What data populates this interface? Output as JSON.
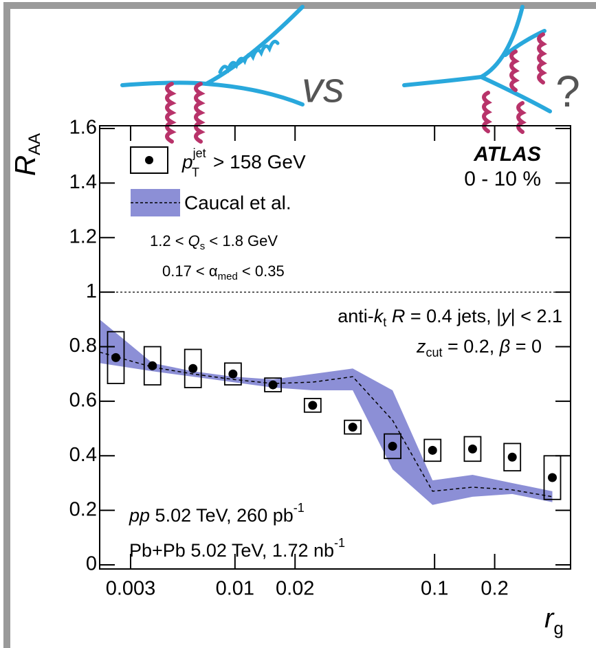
{
  "chart_data": {
    "type": "scatter",
    "x_label": [
      "r",
      "g"
    ],
    "y_label": [
      "R",
      "AA"
    ],
    "xscale": "log",
    "xlim": [
      0.0021,
      0.48
    ],
    "ylim": [
      -0.015,
      1.61
    ],
    "xticks": [
      0.003,
      0.01,
      0.02,
      0.1,
      0.2
    ],
    "yticks": [
      0,
      0.2,
      0.4,
      0.6,
      0.8,
      1,
      1.2,
      1.4,
      1.6
    ],
    "reference_line": 1,
    "series": [
      {
        "name": [
          "p",
          "jet",
          "T",
          "> 158 GeV"
        ],
        "color": "#000000",
        "x": [
          0.00253,
          0.00386,
          0.00616,
          0.00977,
          0.0155,
          0.0245,
          0.0389,
          0.0616,
          0.0977,
          0.155,
          0.245,
          0.389
        ],
        "values": [
          0.76,
          0.73,
          0.72,
          0.7,
          0.66,
          0.585,
          0.505,
          0.435,
          0.42,
          0.425,
          0.395,
          0.32
        ],
        "errors": [
          0.095,
          0.07,
          0.07,
          0.04,
          0.025,
          0.025,
          0.025,
          0.045,
          0.04,
          0.045,
          0.05,
          0.08
        ]
      }
    ],
    "band": {
      "name": "Caucal et al.",
      "color": "#8c8fd6",
      "x": [
        0.0021,
        0.00386,
        0.00616,
        0.00977,
        0.0155,
        0.0245,
        0.0389,
        0.0616,
        0.0977,
        0.155,
        0.245,
        0.389
      ],
      "upper": [
        0.9,
        0.74,
        0.71,
        0.69,
        0.68,
        0.7,
        0.72,
        0.64,
        0.31,
        0.33,
        0.3,
        0.27
      ],
      "lower": [
        0.74,
        0.71,
        0.69,
        0.67,
        0.65,
        0.64,
        0.64,
        0.35,
        0.22,
        0.25,
        0.26,
        0.23
      ],
      "central": [
        0.78,
        0.725,
        0.7,
        0.68,
        0.665,
        0.67,
        0.69,
        0.53,
        0.27,
        0.285,
        0.275,
        0.25
      ]
    },
    "annotations": {
      "experiment": "ATLAS",
      "centrality": "0 - 10 %",
      "qs": [
        "1.2 < ",
        "Q",
        "s",
        " < 1.8 GeV"
      ],
      "alpha": [
        "0.17 < α",
        "med",
        " < 0.35"
      ],
      "jets": [
        "anti-",
        "k",
        "t",
        " ",
        "R",
        " = 0.4 jets, |",
        "y",
        "| < 2.1"
      ],
      "zcut": [
        "z",
        "cut",
        " = 0.2, ",
        "β",
        " = 0"
      ],
      "pp": [
        "pp",
        " 5.02 TeV, 260 pb",
        "-1"
      ],
      "pbpb": [
        "Pb+Pb 5.02 TeV, 1.72 nb",
        "-1"
      ],
      "sketch_vs": "vs",
      "sketch_question": "?"
    }
  }
}
